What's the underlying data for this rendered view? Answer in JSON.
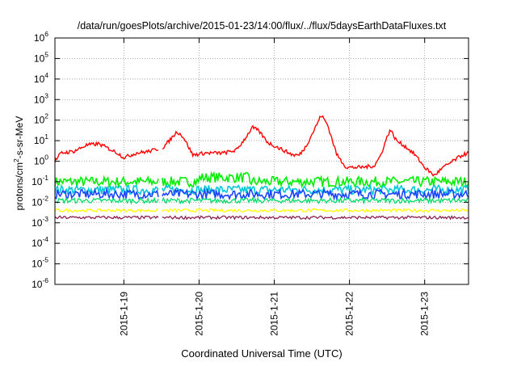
{
  "chart_data": {
    "type": "line",
    "title": "/data/run/goesPlots/archive/2015-01-23/14:00/flux/../flux/5daysEarthDataFluxes.txt",
    "xlabel": "Coordinated Universal Time (UTC)",
    "ylabel_parts": {
      "base": "protons/cm",
      "sup": "2",
      "rest": "-s-sr-MeV"
    },
    "y_scale": "log",
    "ylim": [
      1e-06,
      1000000.0
    ],
    "y_ticks": [
      {
        "value": 1e-06,
        "base": "10",
        "exp": "-6"
      },
      {
        "value": 1e-05,
        "base": "10",
        "exp": "-5"
      },
      {
        "value": 0.0001,
        "base": "10",
        "exp": "-4"
      },
      {
        "value": 0.001,
        "base": "10",
        "exp": "-3"
      },
      {
        "value": 0.01,
        "base": "10",
        "exp": "-2"
      },
      {
        "value": 0.1,
        "base": "10",
        "exp": "-1"
      },
      {
        "value": 1,
        "base": "10",
        "exp": "0"
      },
      {
        "value": 10,
        "base": "10",
        "exp": "1"
      },
      {
        "value": 100,
        "base": "10",
        "exp": "2"
      },
      {
        "value": 1000,
        "base": "10",
        "exp": "3"
      },
      {
        "value": 10000,
        "base": "10",
        "exp": "4"
      },
      {
        "value": 100000,
        "base": "10",
        "exp": "5"
      },
      {
        "value": 1000000,
        "base": "10",
        "exp": "6"
      }
    ],
    "xlim": [
      "2015-01-18 02:00",
      "2015-01-23 14:00"
    ],
    "x_ticks": [
      {
        "value": "2015-01-19 00:00",
        "label": "2015-1-19"
      },
      {
        "value": "2015-01-20 00:00",
        "label": "2015-1-20"
      },
      {
        "value": "2015-01-21 00:00",
        "label": "2015-1-21"
      },
      {
        "value": "2015-01-22 00:00",
        "label": "2015-1-22"
      },
      {
        "value": "2015-01-23 00:00",
        "label": "2015-1-23"
      }
    ],
    "grid": true,
    "data_gap": [
      "2015-01-19 11:00",
      "2015-01-19 12:00"
    ],
    "series": [
      {
        "color": "#ff0000",
        "points": [
          [
            "2015-01-18 02:00",
            1.0
          ],
          [
            "2015-01-18 04:00",
            2.5
          ],
          [
            "2015-01-18 08:00",
            3.0
          ],
          [
            "2015-01-18 12:00",
            6.0
          ],
          [
            "2015-01-18 16:00",
            7.0
          ],
          [
            "2015-01-18 18:00",
            5.0
          ],
          [
            "2015-01-18 22:00",
            2.5
          ],
          [
            "2015-01-19 00:00",
            1.5
          ],
          [
            "2015-01-19 04:00",
            2.5
          ],
          [
            "2015-01-19 08:00",
            3.0
          ],
          [
            "2015-01-19 11:00",
            4.0
          ],
          [
            "2015-01-19 12:00",
            4.0
          ],
          [
            "2015-01-19 14:00",
            8.0
          ],
          [
            "2015-01-19 17:00",
            28.0
          ],
          [
            "2015-01-19 19:00",
            15.0
          ],
          [
            "2015-01-19 22:00",
            2.0
          ],
          [
            "2015-01-20 02:00",
            2.5
          ],
          [
            "2015-01-20 08:00",
            2.5
          ],
          [
            "2015-01-20 12:00",
            3.5
          ],
          [
            "2015-01-20 15:00",
            15.0
          ],
          [
            "2015-01-20 17:00",
            45.0
          ],
          [
            "2015-01-20 19:00",
            30.0
          ],
          [
            "2015-01-20 22:00",
            8.0
          ],
          [
            "2015-01-21 02:00",
            4.0
          ],
          [
            "2015-01-21 06:00",
            2.0
          ],
          [
            "2015-01-21 08:00",
            2.0
          ],
          [
            "2015-01-21 10:00",
            5.0
          ],
          [
            "2015-01-21 13:00",
            40.0
          ],
          [
            "2015-01-21 15:00",
            180.0
          ],
          [
            "2015-01-21 17:00",
            60.0
          ],
          [
            "2015-01-21 20:00",
            2.0
          ],
          [
            "2015-01-21 23:00",
            0.5
          ],
          [
            "2015-01-22 04:00",
            0.5
          ],
          [
            "2015-01-22 08:00",
            0.6
          ],
          [
            "2015-01-22 10:00",
            2.0
          ],
          [
            "2015-01-22 12:00",
            15.0
          ],
          [
            "2015-01-22 13:00",
            35.0
          ],
          [
            "2015-01-22 15:00",
            10.0
          ],
          [
            "2015-01-22 18:00",
            5.0
          ],
          [
            "2015-01-22 21:00",
            2.0
          ],
          [
            "2015-01-23 00:00",
            0.5
          ],
          [
            "2015-01-23 03:00",
            0.2
          ],
          [
            "2015-01-23 06:00",
            0.5
          ],
          [
            "2015-01-23 09:00",
            1.0
          ],
          [
            "2015-01-23 12:00",
            2.0
          ],
          [
            "2015-01-23 14:00",
            2.5
          ]
        ]
      },
      {
        "color": "#00ee00",
        "level": 0.1
      },
      {
        "color": "#00c8d8",
        "level": 0.04
      },
      {
        "color": "#1a44ff",
        "level": 0.025
      },
      {
        "color": "#00dd66",
        "level": 0.012
      },
      {
        "color": "#ffff00",
        "level": 0.004
      },
      {
        "color": "#8b2252",
        "level": 0.0018
      }
    ]
  }
}
